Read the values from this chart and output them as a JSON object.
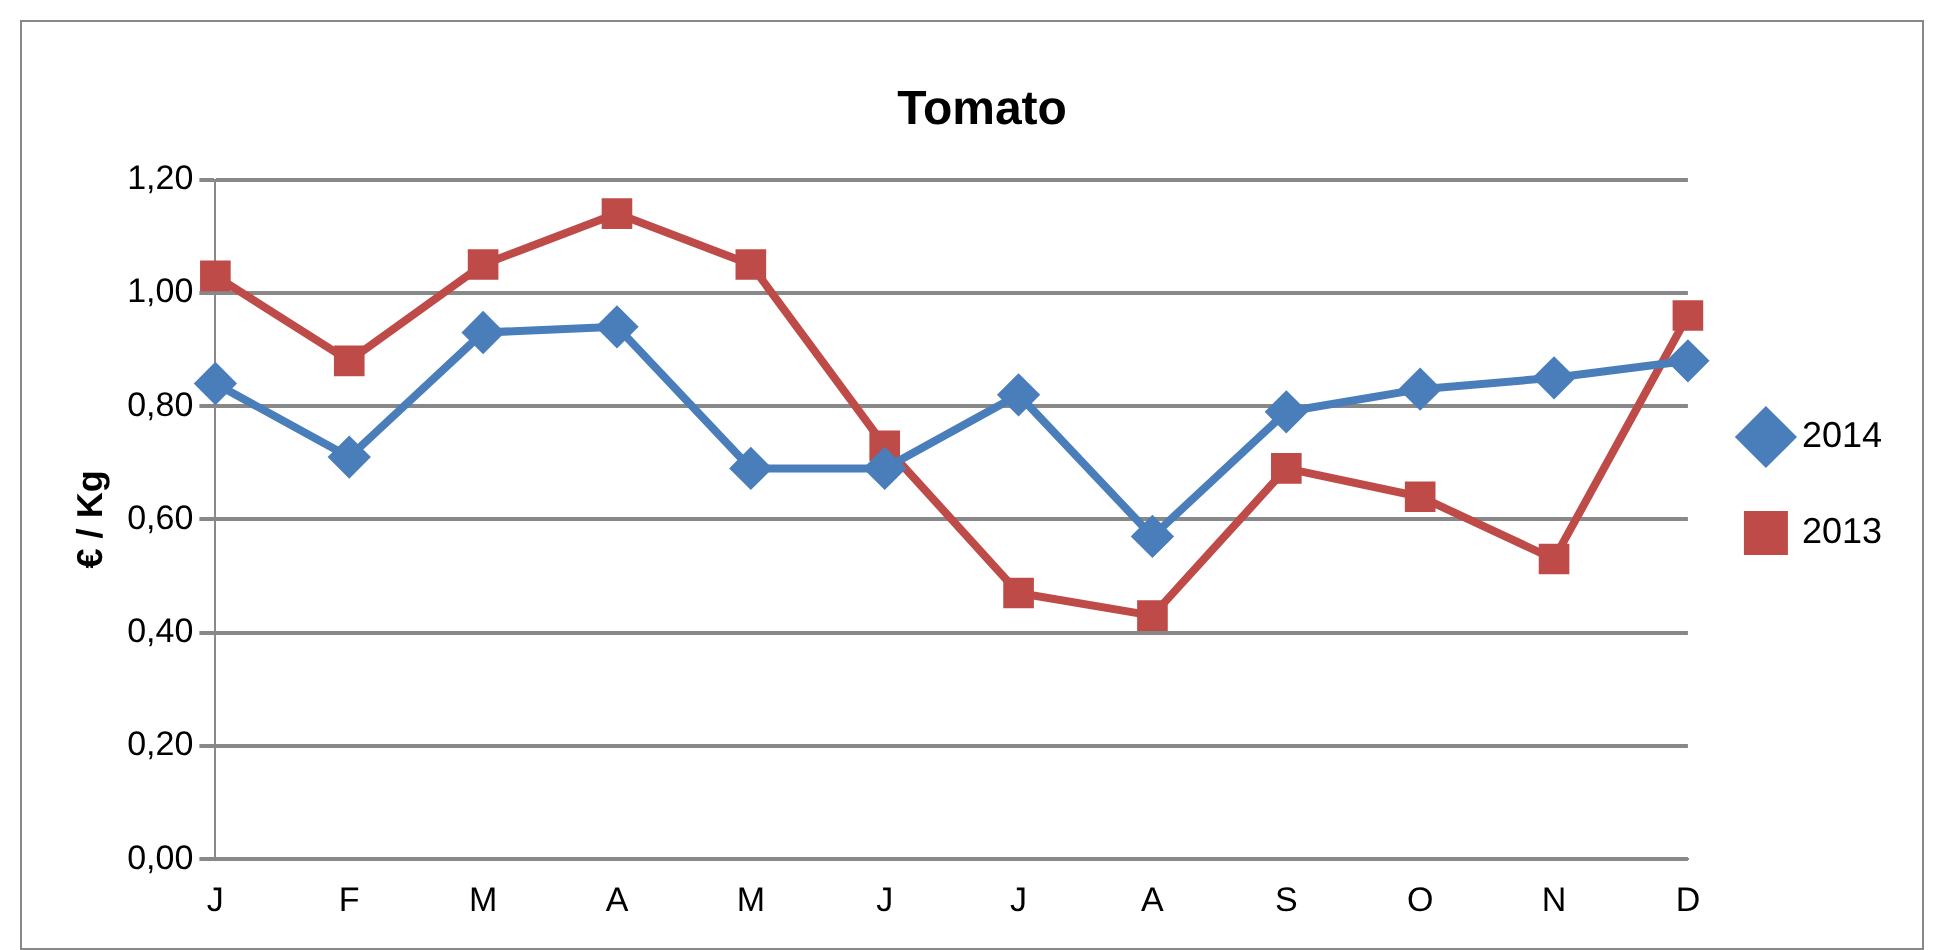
{
  "chart_data": {
    "type": "line",
    "title": "Tomato",
    "ylabel": "€ / Kg",
    "categories": [
      "J",
      "F",
      "M",
      "A",
      "M",
      "J",
      "J",
      "A",
      "S",
      "O",
      "N",
      "D"
    ],
    "series": [
      {
        "name": "2014",
        "color": "#4a7ebb",
        "marker": "diamond",
        "values": [
          0.84,
          0.71,
          0.93,
          0.94,
          0.69,
          0.69,
          0.82,
          0.57,
          0.79,
          0.83,
          0.85,
          0.88
        ]
      },
      {
        "name": "2013",
        "color": "#be4b48",
        "marker": "square",
        "values": [
          1.03,
          0.88,
          1.05,
          1.14,
          1.05,
          0.73,
          0.47,
          0.43,
          0.69,
          0.64,
          0.53,
          0.96
        ]
      }
    ],
    "ylim": [
      0,
      1.2
    ],
    "yticks": [
      {
        "value": 0,
        "label": "0,00"
      },
      {
        "value": 0.2,
        "label": "0,20"
      },
      {
        "value": 0.4,
        "label": "0,40"
      },
      {
        "value": 0.6,
        "label": "0,60"
      },
      {
        "value": 0.8,
        "label": "0,80"
      },
      {
        "value": 1.0,
        "label": "1,00"
      },
      {
        "value": 1.2,
        "label": "1,20"
      }
    ],
    "grid": "y",
    "legend": "right"
  }
}
